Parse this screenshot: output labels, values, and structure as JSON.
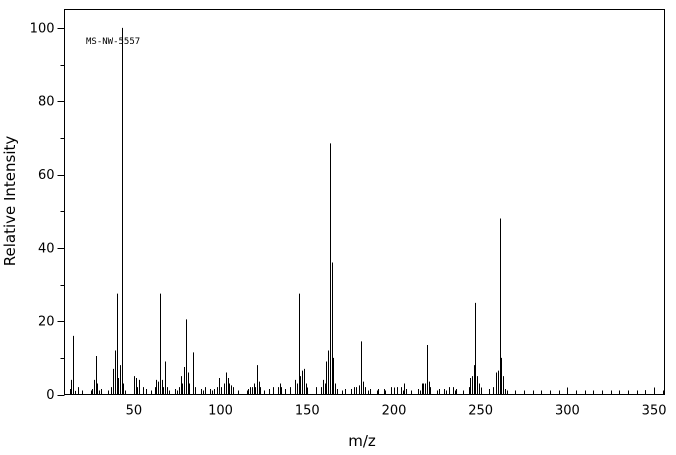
{
  "chart_data": {
    "type": "bar",
    "xlabel": "m/z",
    "ylabel": "Relative Intensity",
    "annotation": "MS-NW-5557",
    "xlim": [
      10,
      356
    ],
    "ylim": [
      0,
      105
    ],
    "xticks": [
      50,
      100,
      150,
      200,
      250,
      300,
      350
    ],
    "yticks": [
      0,
      20,
      40,
      60,
      80,
      100
    ],
    "grid": false,
    "peaks": [
      [
        13,
        1.5
      ],
      [
        14,
        4
      ],
      [
        15,
        16
      ],
      [
        16,
        1
      ],
      [
        18,
        2
      ],
      [
        26,
        1.5
      ],
      [
        27,
        4
      ],
      [
        28,
        10.5
      ],
      [
        29,
        3
      ],
      [
        31,
        1.5
      ],
      [
        37,
        2
      ],
      [
        38,
        7
      ],
      [
        39,
        12
      ],
      [
        40,
        27.5
      ],
      [
        41,
        4.5
      ],
      [
        42,
        8
      ],
      [
        43,
        100
      ],
      [
        44,
        3
      ],
      [
        50,
        5
      ],
      [
        51,
        4.5
      ],
      [
        52,
        2
      ],
      [
        53,
        4
      ],
      [
        55,
        2
      ],
      [
        57,
        1.5
      ],
      [
        62,
        2
      ],
      [
        63,
        4
      ],
      [
        64,
        3.5
      ],
      [
        65,
        27.5
      ],
      [
        66,
        4
      ],
      [
        67,
        2
      ],
      [
        68,
        9
      ],
      [
        69,
        2
      ],
      [
        74,
        1.5
      ],
      [
        76,
        2
      ],
      [
        77,
        5
      ],
      [
        78,
        3
      ],
      [
        79,
        7.5
      ],
      [
        80,
        20.5
      ],
      [
        81,
        6
      ],
      [
        82,
        3
      ],
      [
        84,
        11.5
      ],
      [
        85,
        2
      ],
      [
        89,
        1.5
      ],
      [
        91,
        2
      ],
      [
        94,
        1.5
      ],
      [
        96,
        1.5
      ],
      [
        98,
        2
      ],
      [
        99,
        4.5
      ],
      [
        100,
        2
      ],
      [
        102,
        3
      ],
      [
        103,
        6
      ],
      [
        104,
        4.5
      ],
      [
        105,
        3
      ],
      [
        106,
        2.5
      ],
      [
        107,
        2
      ],
      [
        116,
        1.5
      ],
      [
        117,
        2
      ],
      [
        118,
        2
      ],
      [
        119,
        3
      ],
      [
        120,
        2
      ],
      [
        121,
        8
      ],
      [
        122,
        3.5
      ],
      [
        123,
        2
      ],
      [
        128,
        1.5
      ],
      [
        130,
        2
      ],
      [
        133,
        2
      ],
      [
        134,
        3
      ],
      [
        135,
        2
      ],
      [
        137,
        1.5
      ],
      [
        140,
        2
      ],
      [
        143,
        4
      ],
      [
        144,
        3
      ],
      [
        145,
        27.5
      ],
      [
        146,
        5
      ],
      [
        147,
        6.5
      ],
      [
        148,
        7
      ],
      [
        149,
        3
      ],
      [
        155,
        2
      ],
      [
        158,
        2
      ],
      [
        159,
        4
      ],
      [
        160,
        3
      ],
      [
        161,
        9
      ],
      [
        162,
        12
      ],
      [
        163,
        68.5
      ],
      [
        164,
        36
      ],
      [
        165,
        10
      ],
      [
        166,
        3
      ],
      [
        167,
        1.5
      ],
      [
        172,
        1.5
      ],
      [
        175,
        1.5
      ],
      [
        177,
        2
      ],
      [
        178,
        2
      ],
      [
        180,
        2.5
      ],
      [
        181,
        14.5
      ],
      [
        182,
        3.5
      ],
      [
        183,
        2
      ],
      [
        186,
        1.5
      ],
      [
        191,
        1.5
      ],
      [
        194,
        1.5
      ],
      [
        198,
        2
      ],
      [
        202,
        2
      ],
      [
        204,
        2
      ],
      [
        206,
        3
      ],
      [
        207,
        1.5
      ],
      [
        214,
        1.5
      ],
      [
        216,
        3
      ],
      [
        217,
        3
      ],
      [
        218,
        3
      ],
      [
        219,
        13.5
      ],
      [
        220,
        3.5
      ],
      [
        221,
        2
      ],
      [
        226,
        1.5
      ],
      [
        229,
        1.5
      ],
      [
        232,
        2
      ],
      [
        234,
        2
      ],
      [
        236,
        1.5
      ],
      [
        243,
        2
      ],
      [
        244,
        4.5
      ],
      [
        245,
        5
      ],
      [
        246,
        8
      ],
      [
        247,
        25
      ],
      [
        248,
        5
      ],
      [
        249,
        3
      ],
      [
        255,
        1.5
      ],
      [
        257,
        2
      ],
      [
        259,
        6
      ],
      [
        260,
        6.5
      ],
      [
        261,
        48
      ],
      [
        262,
        10
      ],
      [
        263,
        5
      ],
      [
        264,
        1.5
      ],
      [
        345,
        1.2
      ]
    ]
  }
}
